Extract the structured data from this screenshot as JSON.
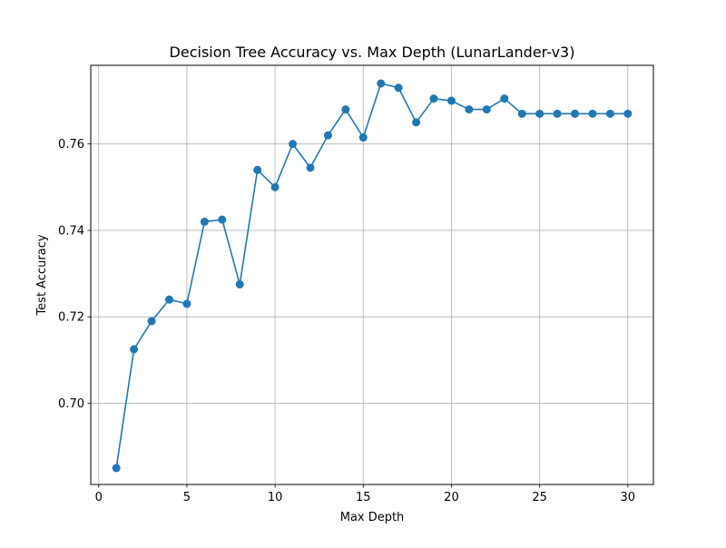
{
  "chart_data": {
    "type": "line",
    "title": "Decision Tree Accuracy vs. Max Depth (LunarLander-v3)",
    "xlabel": "Max Depth",
    "ylabel": "Test Accuracy",
    "xlim": [
      -0.45,
      31.45
    ],
    "ylim": [
      0.6812,
      0.7782
    ],
    "xticks": [
      0,
      5,
      10,
      15,
      20,
      25,
      30
    ],
    "yticks": [
      0.7,
      0.72,
      0.74,
      0.76
    ],
    "ytick_labels": [
      "0.70",
      "0.72",
      "0.74",
      "0.76"
    ],
    "grid": true,
    "marker": "circle",
    "series": [
      {
        "color": "#1f77b4",
        "x": [
          1,
          2,
          3,
          4,
          5,
          6,
          7,
          8,
          9,
          10,
          11,
          12,
          13,
          14,
          15,
          16,
          17,
          18,
          19,
          20,
          21,
          22,
          23,
          24,
          25,
          26,
          27,
          28,
          29,
          30
        ],
        "y": [
          0.685,
          0.7125,
          0.719,
          0.724,
          0.723,
          0.742,
          0.7425,
          0.7275,
          0.754,
          0.75,
          0.76,
          0.7545,
          0.762,
          0.768,
          0.7615,
          0.774,
          0.773,
          0.765,
          0.7705,
          0.77,
          0.768,
          0.768,
          0.7705,
          0.767,
          0.767,
          0.767,
          0.767,
          0.767,
          0.767,
          0.767
        ]
      }
    ]
  }
}
